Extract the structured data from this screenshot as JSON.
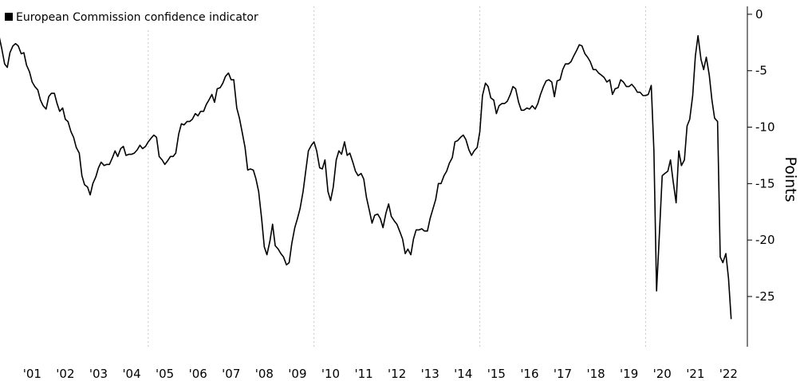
{
  "chart_data": {
    "type": "line",
    "y_label": "Points",
    "x": [
      2000.5,
      2000.58,
      2000.67,
      2000.75,
      2000.83,
      2000.92,
      2001.0,
      2001.08,
      2001.17,
      2001.25,
      2001.33,
      2001.42,
      2001.5,
      2001.58,
      2001.67,
      2001.75,
      2001.83,
      2001.92,
      2002.0,
      2002.08,
      2002.17,
      2002.25,
      2002.33,
      2002.42,
      2002.5,
      2002.58,
      2002.67,
      2002.75,
      2002.83,
      2002.92,
      2003.0,
      2003.08,
      2003.17,
      2003.25,
      2003.33,
      2003.42,
      2003.5,
      2003.58,
      2003.67,
      2003.75,
      2003.83,
      2003.92,
      2004.0,
      2004.08,
      2004.17,
      2004.25,
      2004.33,
      2004.42,
      2004.5,
      2004.58,
      2004.67,
      2004.75,
      2004.83,
      2004.92,
      2005.0,
      2005.08,
      2005.17,
      2005.25,
      2005.33,
      2005.42,
      2005.5,
      2005.58,
      2005.67,
      2005.75,
      2005.83,
      2005.92,
      2006.0,
      2006.08,
      2006.17,
      2006.25,
      2006.33,
      2006.42,
      2006.5,
      2006.58,
      2006.67,
      2006.75,
      2006.83,
      2006.92,
      2007.0,
      2007.08,
      2007.17,
      2007.25,
      2007.33,
      2007.42,
      2007.5,
      2007.58,
      2007.67,
      2007.75,
      2007.83,
      2007.92,
      2008.0,
      2008.08,
      2008.17,
      2008.25,
      2008.33,
      2008.42,
      2008.5,
      2008.58,
      2008.67,
      2008.75,
      2008.83,
      2008.92,
      2009.0,
      2009.08,
      2009.17,
      2009.25,
      2009.33,
      2009.42,
      2009.5,
      2009.58,
      2009.67,
      2009.75,
      2009.83,
      2009.92,
      2010.0,
      2010.08,
      2010.17,
      2010.25,
      2010.33,
      2010.42,
      2010.5,
      2010.58,
      2010.67,
      2010.75,
      2010.83,
      2010.92,
      2011.0,
      2011.08,
      2011.17,
      2011.25,
      2011.33,
      2011.42,
      2011.5,
      2011.58,
      2011.67,
      2011.75,
      2011.83,
      2011.92,
      2012.0,
      2012.08,
      2012.17,
      2012.25,
      2012.33,
      2012.42,
      2012.5,
      2012.58,
      2012.67,
      2012.75,
      2012.83,
      2012.92,
      2013.0,
      2013.08,
      2013.17,
      2013.25,
      2013.33,
      2013.42,
      2013.5,
      2013.58,
      2013.67,
      2013.75,
      2013.83,
      2013.92,
      2014.0,
      2014.08,
      2014.17,
      2014.25,
      2014.33,
      2014.42,
      2014.5,
      2014.58,
      2014.67,
      2014.75,
      2014.83,
      2014.92,
      2015.0,
      2015.08,
      2015.17,
      2015.25,
      2015.33,
      2015.42,
      2015.5,
      2015.58,
      2015.67,
      2015.75,
      2015.83,
      2015.92,
      2016.0,
      2016.08,
      2016.17,
      2016.25,
      2016.33,
      2016.42,
      2016.5,
      2016.58,
      2016.67,
      2016.75,
      2016.83,
      2016.92,
      2017.0,
      2017.08,
      2017.17,
      2017.25,
      2017.33,
      2017.42,
      2017.5,
      2017.58,
      2017.67,
      2017.75,
      2017.83,
      2017.92,
      2018.0,
      2018.08,
      2018.17,
      2018.25,
      2018.33,
      2018.42,
      2018.5,
      2018.58,
      2018.67,
      2018.75,
      2018.83,
      2018.92,
      2019.0,
      2019.08,
      2019.17,
      2019.25,
      2019.33,
      2019.42,
      2019.5,
      2019.58,
      2019.67,
      2019.75,
      2019.83,
      2019.92,
      2020.0,
      2020.08,
      2020.17,
      2020.25,
      2020.33,
      2020.42,
      2020.5,
      2020.58,
      2020.67,
      2020.75,
      2020.83,
      2020.92,
      2021.0,
      2021.08,
      2021.17,
      2021.25,
      2021.33,
      2021.42,
      2021.5,
      2021.58,
      2021.67,
      2021.75,
      2021.83,
      2021.92,
      2022.0,
      2022.08,
      2022.17,
      2022.25,
      2022.33,
      2022.42,
      2022.5,
      2022.58
    ],
    "series": [
      {
        "name": "European Commission confidence indicator",
        "color": "#000000",
        "values": [
          -1.9,
          -3.0,
          -4.4,
          -4.7,
          -3.4,
          -2.8,
          -2.6,
          -2.8,
          -3.5,
          -3.4,
          -4.5,
          -5.1,
          -6.0,
          -6.4,
          -6.7,
          -7.6,
          -8.1,
          -8.4,
          -7.3,
          -7.0,
          -7.0,
          -7.9,
          -8.6,
          -8.3,
          -9.3,
          -9.5,
          -10.4,
          -10.9,
          -11.8,
          -12.3,
          -14.3,
          -15.1,
          -15.3,
          -16.0,
          -15.0,
          -14.4,
          -13.6,
          -13.1,
          -13.4,
          -13.3,
          -13.3,
          -12.7,
          -12.1,
          -12.6,
          -11.9,
          -11.7,
          -12.5,
          -12.4,
          -12.4,
          -12.3,
          -12.0,
          -11.6,
          -11.9,
          -11.7,
          -11.3,
          -11.0,
          -10.7,
          -10.9,
          -12.6,
          -12.9,
          -13.3,
          -13.0,
          -12.6,
          -12.6,
          -12.3,
          -10.6,
          -9.7,
          -9.8,
          -9.5,
          -9.5,
          -9.3,
          -8.8,
          -9.0,
          -8.6,
          -8.6,
          -8.0,
          -7.6,
          -7.1,
          -7.8,
          -6.6,
          -6.5,
          -6.1,
          -5.5,
          -5.2,
          -5.8,
          -5.8,
          -8.3,
          -9.2,
          -10.4,
          -11.8,
          -13.8,
          -13.7,
          -13.8,
          -14.6,
          -15.7,
          -18.1,
          -20.6,
          -21.3,
          -20.1,
          -18.6,
          -20.5,
          -20.8,
          -21.2,
          -21.5,
          -22.2,
          -22.0,
          -20.3,
          -18.9,
          -18.1,
          -17.2,
          -15.7,
          -13.9,
          -12.1,
          -11.6,
          -11.3,
          -12.1,
          -13.6,
          -13.7,
          -12.9,
          -15.7,
          -16.5,
          -15.3,
          -12.9,
          -12.1,
          -12.4,
          -11.3,
          -12.5,
          -12.3,
          -13.1,
          -13.9,
          -14.3,
          -14.1,
          -14.6,
          -16.2,
          -17.4,
          -18.5,
          -17.8,
          -17.7,
          -18.1,
          -18.9,
          -17.6,
          -16.8,
          -17.9,
          -18.3,
          -18.6,
          -19.2,
          -19.9,
          -21.2,
          -20.8,
          -21.3,
          -19.9,
          -19.1,
          -19.1,
          -19.0,
          -19.2,
          -19.2,
          -18.1,
          -17.3,
          -16.4,
          -15.0,
          -15.0,
          -14.3,
          -13.9,
          -13.2,
          -12.7,
          -11.3,
          -11.2,
          -10.9,
          -10.7,
          -11.1,
          -12.0,
          -12.5,
          -12.1,
          -11.8,
          -10.4,
          -7.2,
          -6.1,
          -6.4,
          -7.4,
          -7.6,
          -8.8,
          -8.1,
          -7.9,
          -7.9,
          -7.7,
          -7.1,
          -6.4,
          -6.6,
          -7.8,
          -8.5,
          -8.5,
          -8.3,
          -8.4,
          -8.1,
          -8.4,
          -7.9,
          -7.1,
          -6.4,
          -5.9,
          -5.8,
          -6.0,
          -7.3,
          -5.9,
          -5.8,
          -4.9,
          -4.4,
          -4.4,
          -4.2,
          -3.7,
          -3.2,
          -2.7,
          -2.8,
          -3.5,
          -3.8,
          -4.2,
          -4.9,
          -4.9,
          -5.2,
          -5.4,
          -5.6,
          -6.0,
          -5.8,
          -7.1,
          -6.6,
          -6.5,
          -5.8,
          -6.0,
          -6.4,
          -6.4,
          -6.2,
          -6.5,
          -6.9,
          -6.9,
          -7.2,
          -7.2,
          -7.1,
          -6.3,
          -12.1,
          -24.5,
          -19.2,
          -14.3,
          -14.1,
          -13.9,
          -12.9,
          -14.8,
          -16.7,
          -12.1,
          -13.4,
          -12.9,
          -9.9,
          -9.3,
          -7.2,
          -3.7,
          -1.9,
          -4.0,
          -4.9,
          -3.8,
          -5.4,
          -7.6,
          -9.2,
          -9.5,
          -21.5,
          -22.0,
          -21.2,
          -23.4,
          -27.0
        ]
      }
    ],
    "xlim": [
      2000.53,
      2023.02
    ],
    "ylim": [
      -29.45,
      0.7
    ],
    "yticks": [
      0,
      -5,
      -10,
      -15,
      -20,
      -25
    ],
    "xticks": [
      {
        "value": 2001.5,
        "label": "'01"
      },
      {
        "value": 2002.5,
        "label": "'02"
      },
      {
        "value": 2003.5,
        "label": "'03"
      },
      {
        "value": 2004.5,
        "label": "'04"
      },
      {
        "value": 2005.5,
        "label": "'05"
      },
      {
        "value": 2006.5,
        "label": "'06"
      },
      {
        "value": 2007.5,
        "label": "'07"
      },
      {
        "value": 2008.5,
        "label": "'08"
      },
      {
        "value": 2009.5,
        "label": "'09"
      },
      {
        "value": 2010.5,
        "label": "'10"
      },
      {
        "value": 2011.5,
        "label": "'11"
      },
      {
        "value": 2012.5,
        "label": "'12"
      },
      {
        "value": 2013.5,
        "label": "'13"
      },
      {
        "value": 2014.5,
        "label": "'14"
      },
      {
        "value": 2015.5,
        "label": "'15"
      },
      {
        "value": 2016.5,
        "label": "'16"
      },
      {
        "value": 2017.5,
        "label": "'17"
      },
      {
        "value": 2018.5,
        "label": "'18"
      },
      {
        "value": 2019.5,
        "label": "'19"
      },
      {
        "value": 2020.5,
        "label": "'20"
      },
      {
        "value": 2021.5,
        "label": "'21"
      },
      {
        "value": 2022.5,
        "label": "'22"
      }
    ],
    "xgrid": [
      2005,
      2010,
      2015,
      2020
    ],
    "legend": "top-left"
  }
}
